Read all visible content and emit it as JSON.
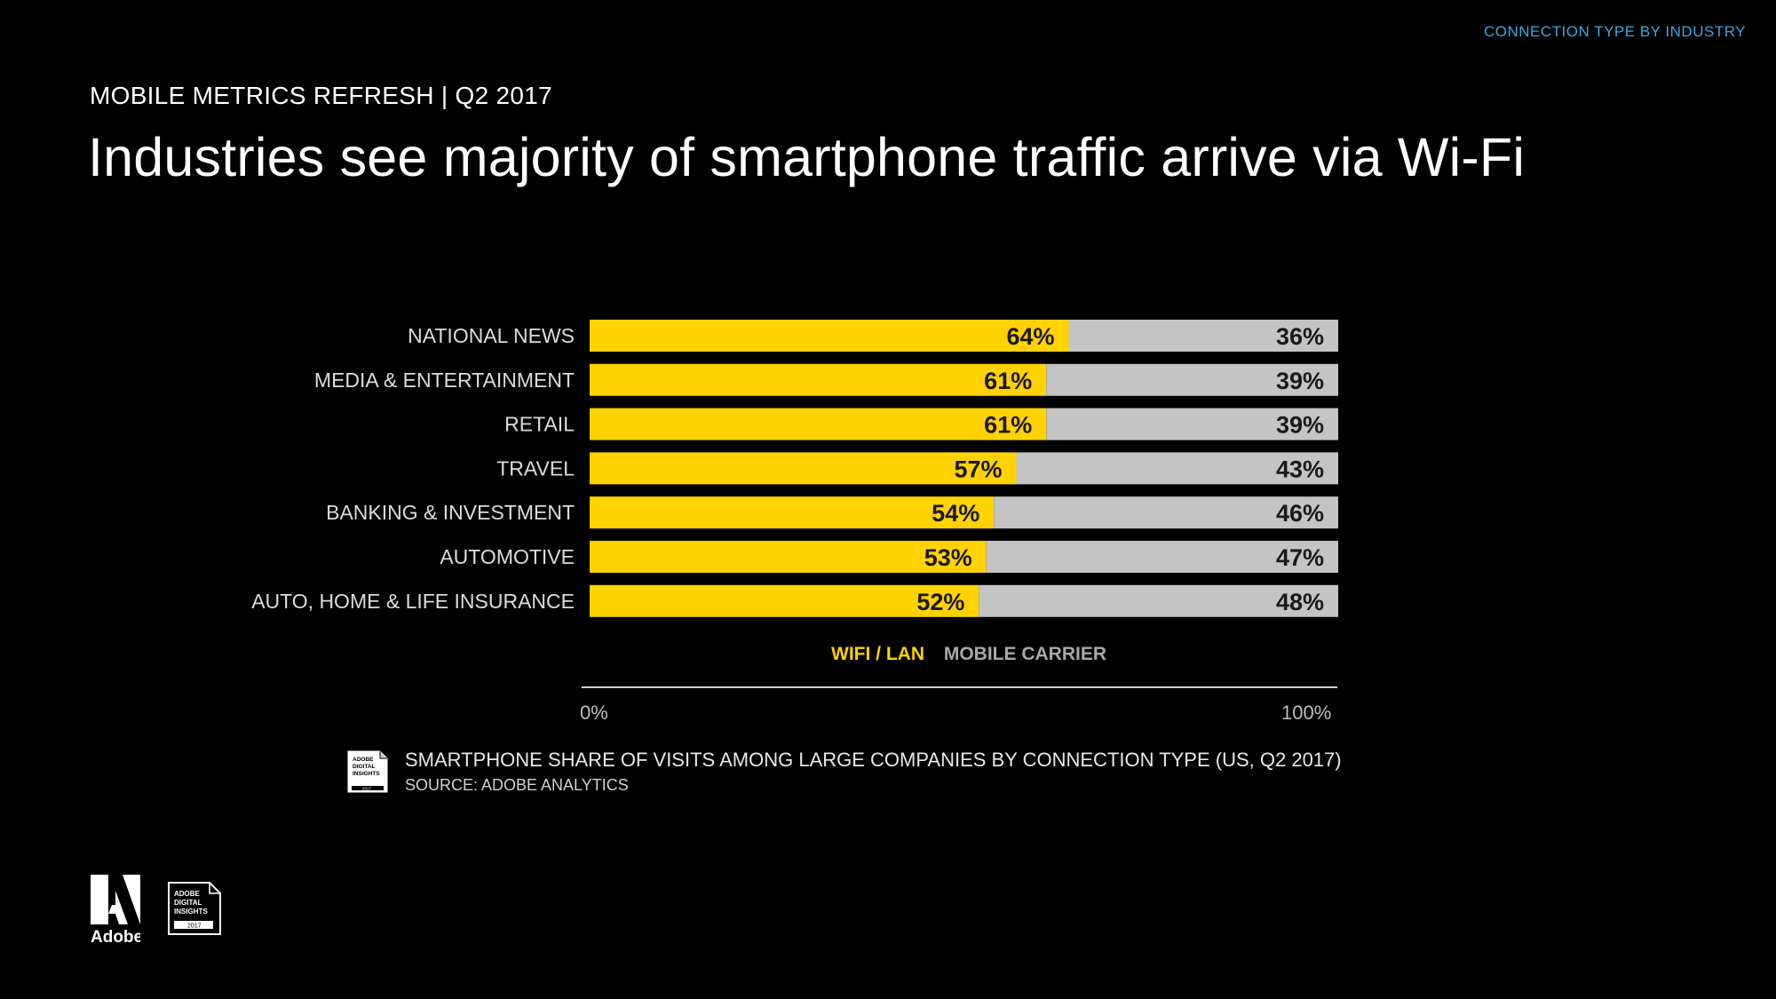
{
  "header": {
    "section_label": "CONNECTION TYPE BY INDUSTRY",
    "kicker": "MOBILE METRICS REFRESH | Q2 2017",
    "title": "Industries see majority of smartphone traffic arrive via Wi-Fi"
  },
  "chart_data": {
    "type": "bar",
    "orientation": "horizontal",
    "stacked": true,
    "categories": [
      "NATIONAL NEWS",
      "MEDIA & ENTERTAINMENT",
      "RETAIL",
      "TRAVEL",
      "BANKING & INVESTMENT",
      "AUTOMOTIVE",
      "AUTO, HOME & LIFE INSURANCE"
    ],
    "series": [
      {
        "name": "WIFI / LAN",
        "color": "#ffd200",
        "values": [
          64,
          61,
          61,
          57,
          54,
          53,
          52
        ]
      },
      {
        "name": "MOBILE CARRIER",
        "color": "#c4c4c4",
        "values": [
          36,
          39,
          39,
          43,
          46,
          47,
          48
        ]
      }
    ],
    "value_suffix": "%",
    "xlim": [
      0,
      100
    ],
    "x_ticks": [
      "0%",
      "100%"
    ],
    "legend_position": "below-bars"
  },
  "footer": {
    "caption": "SMARTPHONE SHARE OF VISITS AMONG LARGE COMPANIES BY CONNECTION TYPE (US, Q2 2017)",
    "source": "SOURCE: ADOBE ANALYTICS",
    "badge_lines": [
      "ADOBE",
      "DIGITAL",
      "INSIGHTS",
      "2017"
    ],
    "logo_text": "Adobe"
  }
}
